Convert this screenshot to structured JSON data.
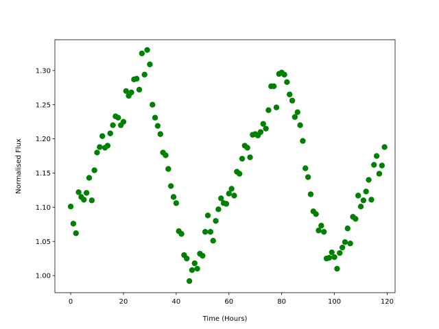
{
  "chart_data": {
    "type": "scatter",
    "title": "",
    "xlabel": "Time (Hours)",
    "ylabel": "Normalised Flux",
    "xlim": [
      -6,
      123
    ],
    "ylim": [
      0.975,
      1.345
    ],
    "xticks": [
      0,
      20,
      40,
      60,
      80,
      100,
      120
    ],
    "yticks": [
      1.0,
      1.05,
      1.1,
      1.15,
      1.2,
      1.25,
      1.3
    ],
    "ytick_labels": [
      "1.00",
      "1.05",
      "1.10",
      "1.15",
      "1.20",
      "1.25",
      "1.30"
    ],
    "grid": false,
    "marker_color": "#008000",
    "series": [
      {
        "points": [
          [
            0,
            1.101
          ],
          [
            1,
            1.076
          ],
          [
            2,
            1.062
          ],
          [
            3,
            1.122
          ],
          [
            4,
            1.115
          ],
          [
            5,
            1.111
          ],
          [
            6,
            1.121
          ],
          [
            7,
            1.143
          ],
          [
            8,
            1.11
          ],
          [
            9,
            1.154
          ],
          [
            10,
            1.18
          ],
          [
            11,
            1.188
          ],
          [
            12,
            1.204
          ],
          [
            13,
            1.187
          ],
          [
            14,
            1.19
          ],
          [
            15,
            1.208
          ],
          [
            16,
            1.22
          ],
          [
            17,
            1.233
          ],
          [
            18,
            1.231
          ],
          [
            19,
            1.22
          ],
          [
            20,
            1.225
          ],
          [
            21,
            1.27
          ],
          [
            22,
            1.263
          ],
          [
            23,
            1.268
          ],
          [
            24,
            1.287
          ],
          [
            25,
            1.288
          ],
          [
            26,
            1.272
          ],
          [
            27,
            1.325
          ],
          [
            28,
            1.294
          ],
          [
            29,
            1.33
          ],
          [
            30,
            1.309
          ],
          [
            31,
            1.25
          ],
          [
            32,
            1.231
          ],
          [
            33,
            1.219
          ],
          [
            34,
            1.207
          ],
          [
            35,
            1.18
          ],
          [
            36,
            1.176
          ],
          [
            37,
            1.156
          ],
          [
            38,
            1.131
          ],
          [
            39,
            1.115
          ],
          [
            40,
            1.106
          ],
          [
            41,
            1.065
          ],
          [
            42,
            1.061
          ],
          [
            43,
            1.03
          ],
          [
            44,
            1.025
          ],
          [
            45,
            0.992
          ],
          [
            46,
            1.008
          ],
          [
            47,
            1.018
          ],
          [
            48,
            1.01
          ],
          [
            49,
            1.032
          ],
          [
            50,
            1.029
          ],
          [
            51,
            1.064
          ],
          [
            52,
            1.088
          ],
          [
            53,
            1.064
          ],
          [
            54,
            1.051
          ],
          [
            55,
            1.08
          ],
          [
            56,
            1.097
          ],
          [
            57,
            1.113
          ],
          [
            58,
            1.106
          ],
          [
            59,
            1.105
          ],
          [
            60,
            1.12
          ],
          [
            61,
            1.127
          ],
          [
            62,
            1.117
          ],
          [
            63,
            1.152
          ],
          [
            64,
            1.149
          ],
          [
            65,
            1.171
          ],
          [
            66,
            1.19
          ],
          [
            67,
            1.187
          ],
          [
            68,
            1.173
          ],
          [
            69,
            1.206
          ],
          [
            70,
            1.207
          ],
          [
            71,
            1.205
          ],
          [
            72,
            1.21
          ],
          [
            73,
            1.222
          ],
          [
            74,
            1.215
          ],
          [
            75,
            1.242
          ],
          [
            76,
            1.277
          ],
          [
            77,
            1.277
          ],
          [
            78,
            1.246
          ],
          [
            79,
            1.295
          ],
          [
            80,
            1.297
          ],
          [
            81,
            1.294
          ],
          [
            82,
            1.283
          ],
          [
            83,
            1.265
          ],
          [
            84,
            1.256
          ],
          [
            85,
            1.232
          ],
          [
            86,
            1.239
          ],
          [
            87,
            1.22
          ],
          [
            88,
            1.197
          ],
          [
            89,
            1.157
          ],
          [
            90,
            1.144
          ],
          [
            91,
            1.119
          ],
          [
            92,
            1.094
          ],
          [
            93,
            1.09
          ],
          [
            94,
            1.066
          ],
          [
            95,
            1.073
          ],
          [
            96,
            1.064
          ],
          [
            97,
            1.025
          ],
          [
            98,
            1.026
          ],
          [
            99,
            1.034
          ],
          [
            100,
            1.027
          ],
          [
            101,
            1.01
          ],
          [
            102,
            1.033
          ],
          [
            103,
            1.041
          ],
          [
            104,
            1.049
          ],
          [
            105,
            1.069
          ],
          [
            106,
            1.047
          ],
          [
            107,
            1.086
          ],
          [
            108,
            1.083
          ],
          [
            109,
            1.117
          ],
          [
            110,
            1.101
          ],
          [
            111,
            1.11
          ],
          [
            112,
            1.123
          ],
          [
            113,
            1.14
          ],
          [
            114,
            1.111
          ],
          [
            115,
            1.162
          ],
          [
            116,
            1.175
          ],
          [
            117,
            1.149
          ],
          [
            118,
            1.161
          ],
          [
            119,
            1.188
          ]
        ]
      }
    ]
  }
}
